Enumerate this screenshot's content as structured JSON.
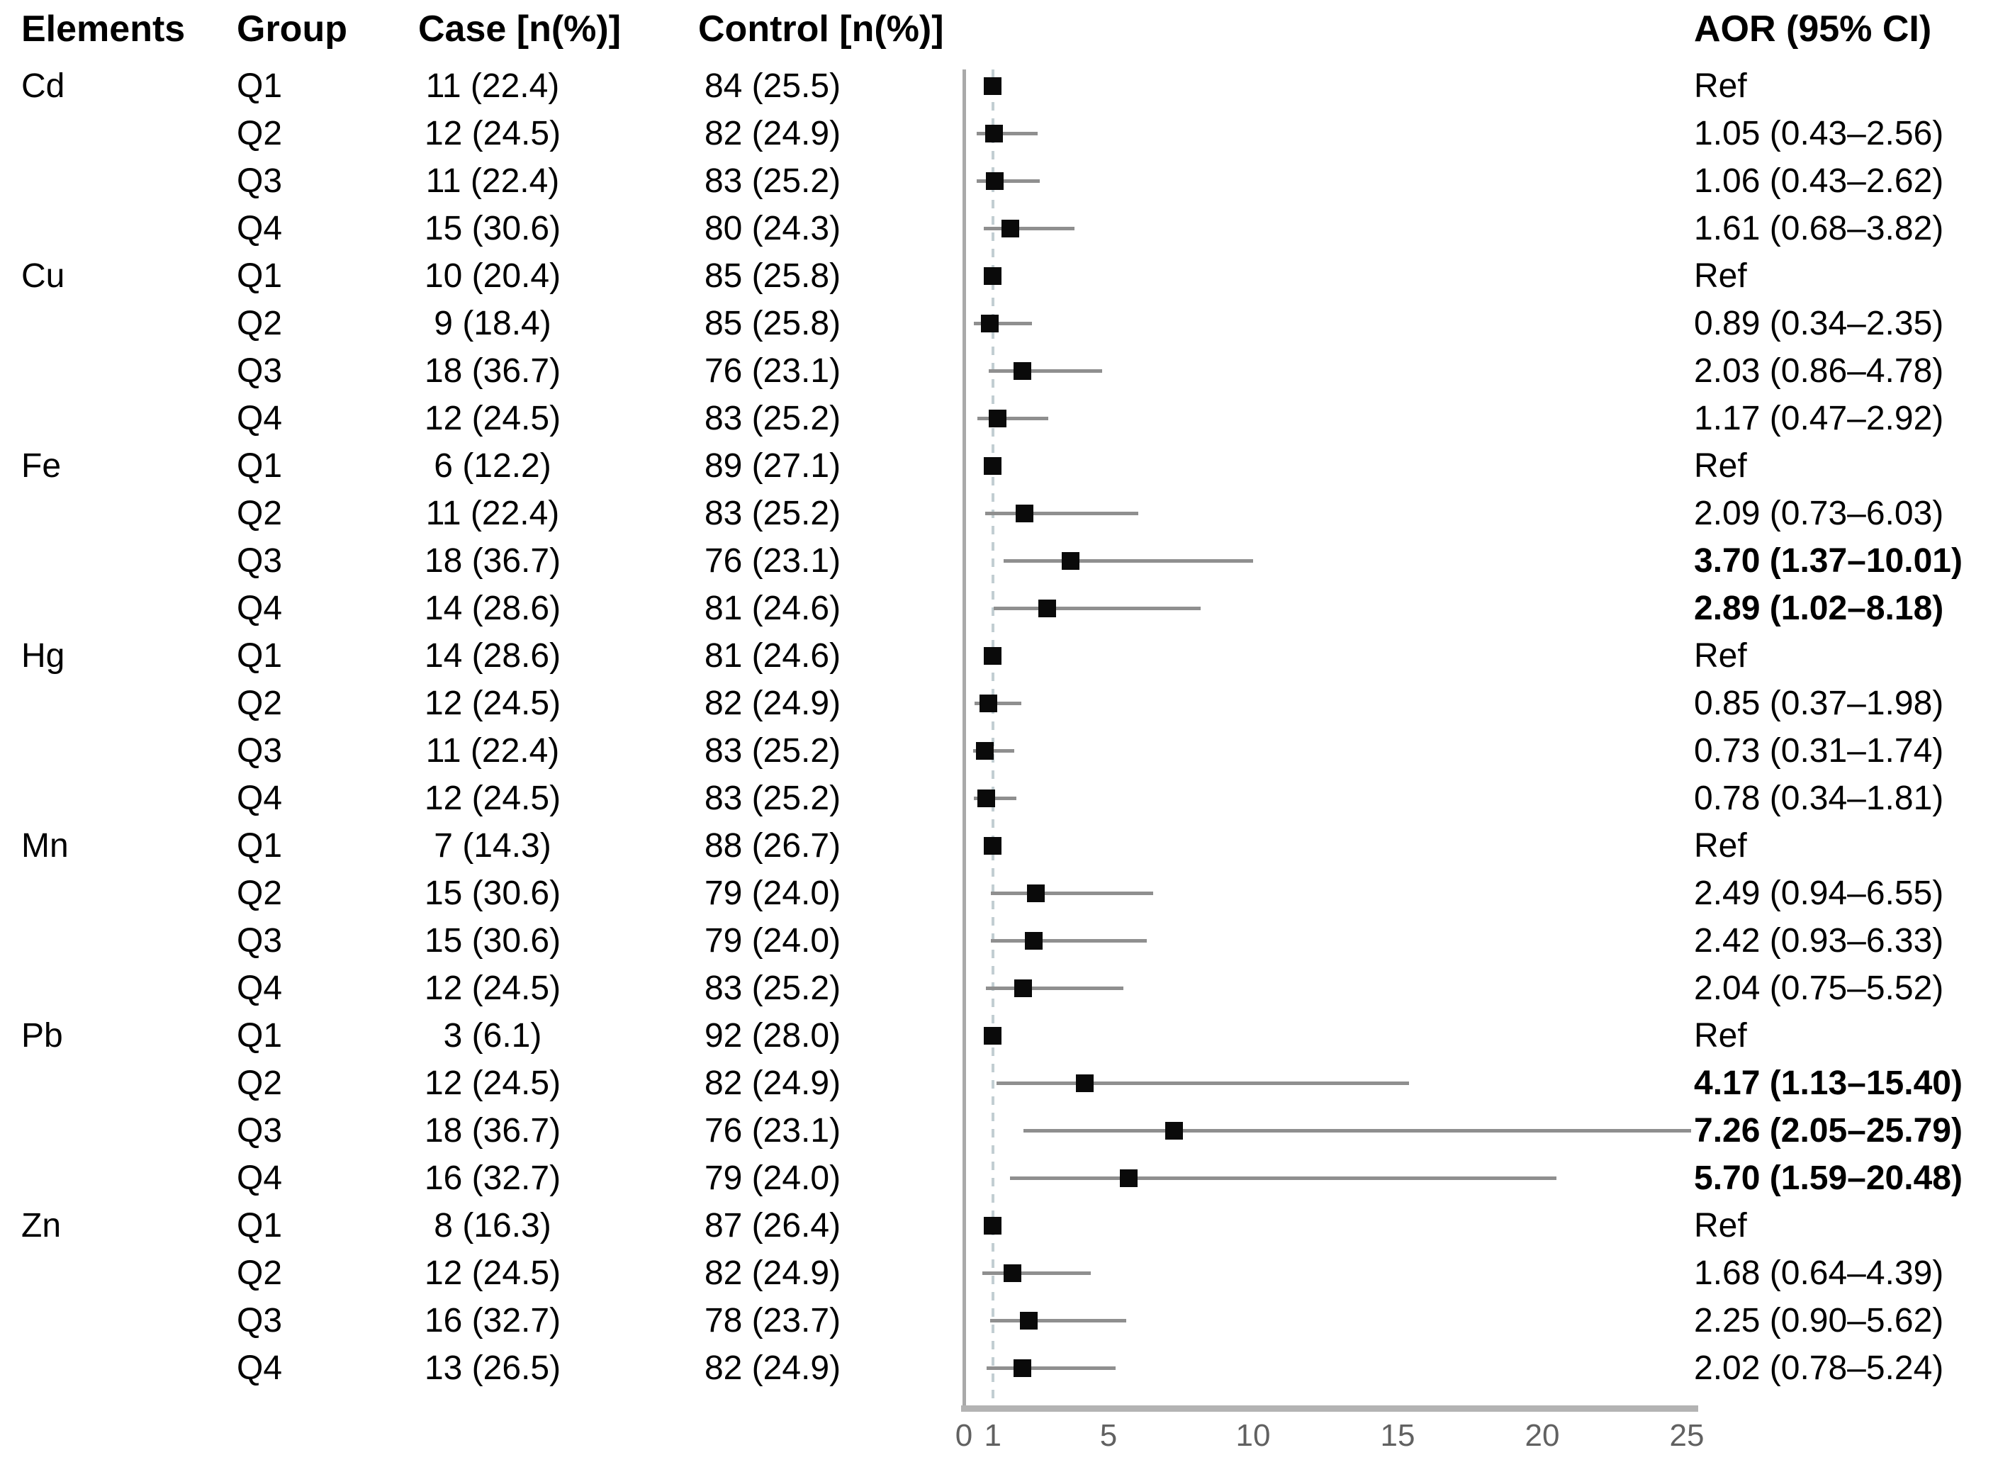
{
  "header": {
    "elements": "Elements",
    "group": "Group",
    "case": "Case [n(%)]",
    "control": "Control [n(%)]",
    "aor": "AOR (95% CI)"
  },
  "colors": {
    "marker": "#0a0a0a",
    "ci_line": "#8f8f8f",
    "axis_bar": "#b3b3b3",
    "y_line": "#a9a9a9",
    "reference_dashed_line": "#c2ced2",
    "tick_text": "#616161"
  },
  "rows": [
    {
      "element": "Cd",
      "group": "Q1",
      "case": "11 (22.4)",
      "control": "84 (25.5)",
      "aor_text": "Ref",
      "aor": 1.0,
      "lo": null,
      "hi": null,
      "sig": false
    },
    {
      "element": "",
      "group": "Q2",
      "case": "12 (24.5)",
      "control": "82 (24.9)",
      "aor_text": "1.05 (0.43–2.56)",
      "aor": 1.05,
      "lo": 0.43,
      "hi": 2.56,
      "sig": false
    },
    {
      "element": "",
      "group": "Q3",
      "case": "11 (22.4)",
      "control": "83 (25.2)",
      "aor_text": "1.06 (0.43–2.62)",
      "aor": 1.06,
      "lo": 0.43,
      "hi": 2.62,
      "sig": false
    },
    {
      "element": "",
      "group": "Q4",
      "case": "15 (30.6)",
      "control": "80 (24.3)",
      "aor_text": "1.61 (0.68–3.82)",
      "aor": 1.61,
      "lo": 0.68,
      "hi": 3.82,
      "sig": false
    },
    {
      "element": "Cu",
      "group": "Q1",
      "case": "10 (20.4)",
      "control": "85 (25.8)",
      "aor_text": "Ref",
      "aor": 1.0,
      "lo": null,
      "hi": null,
      "sig": false
    },
    {
      "element": "",
      "group": "Q2",
      "case": "9 (18.4)",
      "control": "85 (25.8)",
      "aor_text": "0.89 (0.34–2.35)",
      "aor": 0.89,
      "lo": 0.34,
      "hi": 2.35,
      "sig": false
    },
    {
      "element": "",
      "group": "Q3",
      "case": "18 (36.7)",
      "control": "76 (23.1)",
      "aor_text": "2.03 (0.86–4.78)",
      "aor": 2.03,
      "lo": 0.86,
      "hi": 4.78,
      "sig": false
    },
    {
      "element": "",
      "group": "Q4",
      "case": "12 (24.5)",
      "control": "83 (25.2)",
      "aor_text": "1.17 (0.47–2.92)",
      "aor": 1.17,
      "lo": 0.47,
      "hi": 2.92,
      "sig": false
    },
    {
      "element": "Fe",
      "group": "Q1",
      "case": "6 (12.2)",
      "control": "89 (27.1)",
      "aor_text": "Ref",
      "aor": 1.0,
      "lo": null,
      "hi": null,
      "sig": false
    },
    {
      "element": "",
      "group": "Q2",
      "case": "11 (22.4)",
      "control": "83 (25.2)",
      "aor_text": "2.09 (0.73–6.03)",
      "aor": 2.09,
      "lo": 0.73,
      "hi": 6.03,
      "sig": false
    },
    {
      "element": "",
      "group": "Q3",
      "case": "18 (36.7)",
      "control": "76 (23.1)",
      "aor_text": "3.70 (1.37–10.01)",
      "aor": 3.7,
      "lo": 1.37,
      "hi": 10.01,
      "sig": true
    },
    {
      "element": "",
      "group": "Q4",
      "case": "14 (28.6)",
      "control": "81 (24.6)",
      "aor_text": "2.89 (1.02–8.18)",
      "aor": 2.89,
      "lo": 1.02,
      "hi": 8.18,
      "sig": true
    },
    {
      "element": "Hg",
      "group": "Q1",
      "case": "14 (28.6)",
      "control": "81 (24.6)",
      "aor_text": "Ref",
      "aor": 1.0,
      "lo": null,
      "hi": null,
      "sig": false
    },
    {
      "element": "",
      "group": "Q2",
      "case": "12 (24.5)",
      "control": "82 (24.9)",
      "aor_text": "0.85 (0.37–1.98)",
      "aor": 0.85,
      "lo": 0.37,
      "hi": 1.98,
      "sig": false
    },
    {
      "element": "",
      "group": "Q3",
      "case": "11 (22.4)",
      "control": "83 (25.2)",
      "aor_text": "0.73 (0.31–1.74)",
      "aor": 0.73,
      "lo": 0.31,
      "hi": 1.74,
      "sig": false
    },
    {
      "element": "",
      "group": "Q4",
      "case": "12 (24.5)",
      "control": "83 (25.2)",
      "aor_text": "0.78 (0.34–1.81)",
      "aor": 0.78,
      "lo": 0.34,
      "hi": 1.81,
      "sig": false
    },
    {
      "element": "Mn",
      "group": "Q1",
      "case": "7 (14.3)",
      "control": "88 (26.7)",
      "aor_text": "Ref",
      "aor": 1.0,
      "lo": null,
      "hi": null,
      "sig": false
    },
    {
      "element": "",
      "group": "Q2",
      "case": "15 (30.6)",
      "control": "79 (24.0)",
      "aor_text": "2.49 (0.94–6.55)",
      "aor": 2.49,
      "lo": 0.94,
      "hi": 6.55,
      "sig": false
    },
    {
      "element": "",
      "group": "Q3",
      "case": "15 (30.6)",
      "control": "79 (24.0)",
      "aor_text": "2.42 (0.93–6.33)",
      "aor": 2.42,
      "lo": 0.93,
      "hi": 6.33,
      "sig": false
    },
    {
      "element": "",
      "group": "Q4",
      "case": "12 (24.5)",
      "control": "83 (25.2)",
      "aor_text": "2.04 (0.75–5.52)",
      "aor": 2.04,
      "lo": 0.75,
      "hi": 5.52,
      "sig": false
    },
    {
      "element": "Pb",
      "group": "Q1",
      "case": "3 (6.1)",
      "control": "92 (28.0)",
      "aor_text": "Ref",
      "aor": 1.0,
      "lo": null,
      "hi": null,
      "sig": false
    },
    {
      "element": "",
      "group": "Q2",
      "case": "12 (24.5)",
      "control": "82 (24.9)",
      "aor_text": "4.17 (1.13–15.40)",
      "aor": 4.17,
      "lo": 1.13,
      "hi": 15.4,
      "sig": true
    },
    {
      "element": "",
      "group": "Q3",
      "case": "18 (36.7)",
      "control": "76 (23.1)",
      "aor_text": "7.26 (2.05–25.79)",
      "aor": 7.26,
      "lo": 2.05,
      "hi": 25.79,
      "sig": true
    },
    {
      "element": "",
      "group": "Q4",
      "case": "16 (32.7)",
      "control": "79 (24.0)",
      "aor_text": "5.70 (1.59–20.48)",
      "aor": 5.7,
      "lo": 1.59,
      "hi": 20.48,
      "sig": true
    },
    {
      "element": "Zn",
      "group": "Q1",
      "case": "8 (16.3)",
      "control": "87 (26.4)",
      "aor_text": "Ref",
      "aor": 1.0,
      "lo": null,
      "hi": null,
      "sig": false
    },
    {
      "element": "",
      "group": "Q2",
      "case": "12 (24.5)",
      "control": "82 (24.9)",
      "aor_text": "1.68 (0.64–4.39)",
      "aor": 1.68,
      "lo": 0.64,
      "hi": 4.39,
      "sig": false
    },
    {
      "element": "",
      "group": "Q3",
      "case": "16 (32.7)",
      "control": "78 (23.7)",
      "aor_text": "2.25 (0.90–5.62)",
      "aor": 2.25,
      "lo": 0.9,
      "hi": 5.62,
      "sig": false
    },
    {
      "element": "",
      "group": "Q4",
      "case": "13 (26.5)",
      "control": "82 (24.9)",
      "aor_text": "2.02 (0.78–5.24)",
      "aor": 2.02,
      "lo": 0.78,
      "hi": 5.24,
      "sig": false
    }
  ],
  "chart_data": {
    "type": "scatter",
    "subtype": "forest-plot",
    "title": "",
    "xlabel": "",
    "x_ticks": [
      0,
      1,
      5,
      10,
      15,
      20,
      25
    ],
    "xlim": [
      0,
      25.3
    ],
    "reference_line_x": 1,
    "grid": false,
    "legend": "none",
    "points": [
      {
        "label": "Cd Q1",
        "aor": 1.0,
        "ci": null
      },
      {
        "label": "Cd Q2",
        "aor": 1.05,
        "ci": [
          0.43,
          2.56
        ]
      },
      {
        "label": "Cd Q3",
        "aor": 1.06,
        "ci": [
          0.43,
          2.62
        ]
      },
      {
        "label": "Cd Q4",
        "aor": 1.61,
        "ci": [
          0.68,
          3.82
        ]
      },
      {
        "label": "Cu Q1",
        "aor": 1.0,
        "ci": null
      },
      {
        "label": "Cu Q2",
        "aor": 0.89,
        "ci": [
          0.34,
          2.35
        ]
      },
      {
        "label": "Cu Q3",
        "aor": 2.03,
        "ci": [
          0.86,
          4.78
        ]
      },
      {
        "label": "Cu Q4",
        "aor": 1.17,
        "ci": [
          0.47,
          2.92
        ]
      },
      {
        "label": "Fe Q1",
        "aor": 1.0,
        "ci": null
      },
      {
        "label": "Fe Q2",
        "aor": 2.09,
        "ci": [
          0.73,
          6.03
        ]
      },
      {
        "label": "Fe Q3",
        "aor": 3.7,
        "ci": [
          1.37,
          10.01
        ]
      },
      {
        "label": "Fe Q4",
        "aor": 2.89,
        "ci": [
          1.02,
          8.18
        ]
      },
      {
        "label": "Hg Q1",
        "aor": 1.0,
        "ci": null
      },
      {
        "label": "Hg Q2",
        "aor": 0.85,
        "ci": [
          0.37,
          1.98
        ]
      },
      {
        "label": "Hg Q3",
        "aor": 0.73,
        "ci": [
          0.31,
          1.74
        ]
      },
      {
        "label": "Hg Q4",
        "aor": 0.78,
        "ci": [
          0.34,
          1.81
        ]
      },
      {
        "label": "Mn Q1",
        "aor": 1.0,
        "ci": null
      },
      {
        "label": "Mn Q2",
        "aor": 2.49,
        "ci": [
          0.94,
          6.55
        ]
      },
      {
        "label": "Mn Q3",
        "aor": 2.42,
        "ci": [
          0.93,
          6.33
        ]
      },
      {
        "label": "Mn Q4",
        "aor": 2.04,
        "ci": [
          0.75,
          5.52
        ]
      },
      {
        "label": "Pb Q1",
        "aor": 1.0,
        "ci": null
      },
      {
        "label": "Pb Q2",
        "aor": 4.17,
        "ci": [
          1.13,
          15.4
        ]
      },
      {
        "label": "Pb Q3",
        "aor": 7.26,
        "ci": [
          2.05,
          25.79
        ]
      },
      {
        "label": "Pb Q4",
        "aor": 5.7,
        "ci": [
          1.59,
          20.48
        ]
      },
      {
        "label": "Zn Q1",
        "aor": 1.0,
        "ci": null
      },
      {
        "label": "Zn Q2",
        "aor": 1.68,
        "ci": [
          0.64,
          4.39
        ]
      },
      {
        "label": "Zn Q3",
        "aor": 2.25,
        "ci": [
          0.9,
          5.62
        ]
      },
      {
        "label": "Zn Q4",
        "aor": 2.02,
        "ci": [
          0.78,
          5.24
        ]
      }
    ]
  }
}
